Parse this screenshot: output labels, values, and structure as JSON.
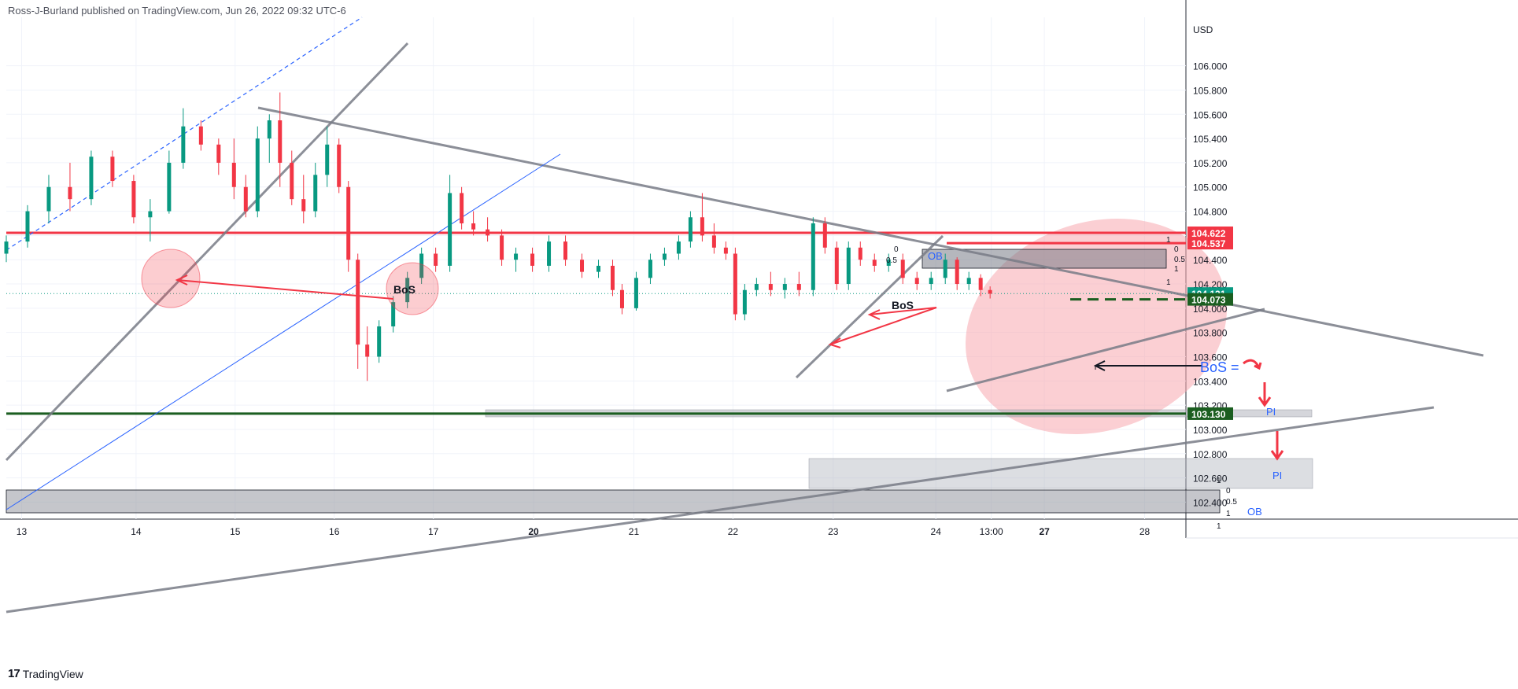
{
  "header": {
    "publisher_line": "Ross-J-Burland published on TradingView.com, Jun 26, 2022 09:32 UTC-6"
  },
  "footer": {
    "brand": "TradingView",
    "logo_icon": "tradingview-logo-icon"
  },
  "chart_data": {
    "type": "candlestick",
    "currency_label": "USD",
    "y_ticks": [
      "106.000",
      "105.800",
      "105.600",
      "105.400",
      "105.200",
      "105.000",
      "104.800",
      "104.600",
      "104.400",
      "104.200",
      "104.000",
      "103.800",
      "103.600",
      "103.400",
      "103.200",
      "103.000",
      "102.800",
      "102.600",
      "102.400"
    ],
    "x_ticks": [
      "13",
      "14",
      "15",
      "16",
      "17",
      "20",
      "21",
      "22",
      "23",
      "24",
      "13:00",
      "27",
      "28"
    ],
    "x_ticks_bold": [
      "20",
      "27"
    ],
    "ylim": [
      102.26,
      106.4
    ],
    "xlim": [
      0,
      1000
    ],
    "price_badges": [
      {
        "label": "104.622",
        "price": 104.622,
        "color": "#f23645"
      },
      {
        "label": "104.537",
        "price": 104.537,
        "color": "#f23645"
      },
      {
        "label": "104.121",
        "price": 104.121,
        "color": "#089981"
      },
      {
        "label": "104.073",
        "price": 104.073,
        "color": "#1b5e20"
      },
      {
        "label": "103.130",
        "price": 103.13,
        "color": "#1b5e20"
      }
    ],
    "colors": {
      "up": "#089981",
      "down": "#f23645",
      "trendline": "#787b86",
      "blue_line": "#2962ff",
      "zone": "#b2b5be",
      "red_zone": "#f23645",
      "ellipse": "#f7a8ae"
    },
    "candles_approx": [
      {
        "t": 0,
        "o": 104.45,
        "h": 104.6,
        "l": 104.38,
        "c": 104.55
      },
      {
        "t": 18,
        "o": 104.55,
        "h": 104.85,
        "l": 104.5,
        "c": 104.8
      },
      {
        "t": 36,
        "o": 104.8,
        "h": 105.1,
        "l": 104.7,
        "c": 105.0
      },
      {
        "t": 54,
        "o": 105.0,
        "h": 105.2,
        "l": 104.8,
        "c": 104.9
      },
      {
        "t": 72,
        "o": 104.9,
        "h": 105.3,
        "l": 104.85,
        "c": 105.25
      },
      {
        "t": 90,
        "o": 105.25,
        "h": 105.3,
        "l": 105.0,
        "c": 105.05
      },
      {
        "t": 108,
        "o": 105.05,
        "h": 105.1,
        "l": 104.7,
        "c": 104.75
      },
      {
        "t": 122,
        "o": 104.75,
        "h": 104.9,
        "l": 104.55,
        "c": 104.8
      },
      {
        "t": 138,
        "o": 104.8,
        "h": 105.3,
        "l": 104.78,
        "c": 105.2
      },
      {
        "t": 150,
        "o": 105.2,
        "h": 105.65,
        "l": 105.15,
        "c": 105.5
      },
      {
        "t": 165,
        "o": 105.5,
        "h": 105.55,
        "l": 105.3,
        "c": 105.35
      },
      {
        "t": 180,
        "o": 105.35,
        "h": 105.4,
        "l": 105.1,
        "c": 105.2
      },
      {
        "t": 193,
        "o": 105.2,
        "h": 105.4,
        "l": 104.9,
        "c": 105.0
      },
      {
        "t": 203,
        "o": 105.0,
        "h": 105.1,
        "l": 104.75,
        "c": 104.8
      },
      {
        "t": 213,
        "o": 104.8,
        "h": 105.5,
        "l": 104.75,
        "c": 105.4
      },
      {
        "t": 223,
        "o": 105.4,
        "h": 105.6,
        "l": 105.2,
        "c": 105.55
      },
      {
        "t": 232,
        "o": 105.55,
        "h": 105.78,
        "l": 105.0,
        "c": 105.2
      },
      {
        "t": 242,
        "o": 105.2,
        "h": 105.3,
        "l": 104.85,
        "c": 104.9
      },
      {
        "t": 252,
        "o": 104.9,
        "h": 105.1,
        "l": 104.7,
        "c": 104.8
      },
      {
        "t": 262,
        "o": 104.8,
        "h": 105.2,
        "l": 104.75,
        "c": 105.1
      },
      {
        "t": 272,
        "o": 105.1,
        "h": 105.5,
        "l": 105.0,
        "c": 105.35
      },
      {
        "t": 282,
        "o": 105.35,
        "h": 105.4,
        "l": 104.95,
        "c": 105.0
      },
      {
        "t": 290,
        "o": 105.0,
        "h": 105.05,
        "l": 104.3,
        "c": 104.4
      },
      {
        "t": 298,
        "o": 104.4,
        "h": 104.45,
        "l": 103.5,
        "c": 103.7
      },
      {
        "t": 306,
        "o": 103.7,
        "h": 103.85,
        "l": 103.4,
        "c": 103.6
      },
      {
        "t": 316,
        "o": 103.6,
        "h": 103.9,
        "l": 103.55,
        "c": 103.85
      },
      {
        "t": 328,
        "o": 103.85,
        "h": 104.1,
        "l": 103.8,
        "c": 104.05
      },
      {
        "t": 340,
        "o": 104.05,
        "h": 104.3,
        "l": 104.0,
        "c": 104.25
      },
      {
        "t": 352,
        "o": 104.25,
        "h": 104.5,
        "l": 104.2,
        "c": 104.45
      },
      {
        "t": 364,
        "o": 104.45,
        "h": 104.5,
        "l": 104.3,
        "c": 104.35
      },
      {
        "t": 376,
        "o": 104.35,
        "h": 105.1,
        "l": 104.3,
        "c": 104.95
      },
      {
        "t": 386,
        "o": 104.95,
        "h": 105.0,
        "l": 104.65,
        "c": 104.7
      },
      {
        "t": 396,
        "o": 104.7,
        "h": 104.8,
        "l": 104.6,
        "c": 104.65
      },
      {
        "t": 408,
        "o": 104.65,
        "h": 104.75,
        "l": 104.55,
        "c": 104.6
      },
      {
        "t": 420,
        "o": 104.6,
        "h": 104.65,
        "l": 104.35,
        "c": 104.4
      },
      {
        "t": 432,
        "o": 104.4,
        "h": 104.5,
        "l": 104.3,
        "c": 104.45
      },
      {
        "t": 446,
        "o": 104.45,
        "h": 104.5,
        "l": 104.3,
        "c": 104.35
      },
      {
        "t": 460,
        "o": 104.35,
        "h": 104.6,
        "l": 104.3,
        "c": 104.55
      },
      {
        "t": 474,
        "o": 104.55,
        "h": 104.6,
        "l": 104.35,
        "c": 104.4
      },
      {
        "t": 488,
        "o": 104.4,
        "h": 104.45,
        "l": 104.25,
        "c": 104.3
      },
      {
        "t": 502,
        "o": 104.3,
        "h": 104.4,
        "l": 104.25,
        "c": 104.35
      },
      {
        "t": 514,
        "o": 104.35,
        "h": 104.4,
        "l": 104.1,
        "c": 104.15
      },
      {
        "t": 522,
        "o": 104.15,
        "h": 104.2,
        "l": 103.95,
        "c": 104.0
      },
      {
        "t": 534,
        "o": 104.0,
        "h": 104.3,
        "l": 103.98,
        "c": 104.25
      },
      {
        "t": 546,
        "o": 104.25,
        "h": 104.45,
        "l": 104.2,
        "c": 104.4
      },
      {
        "t": 558,
        "o": 104.4,
        "h": 104.5,
        "l": 104.35,
        "c": 104.45
      },
      {
        "t": 570,
        "o": 104.45,
        "h": 104.6,
        "l": 104.4,
        "c": 104.55
      },
      {
        "t": 580,
        "o": 104.55,
        "h": 104.8,
        "l": 104.5,
        "c": 104.75
      },
      {
        "t": 590,
        "o": 104.75,
        "h": 104.95,
        "l": 104.55,
        "c": 104.6
      },
      {
        "t": 600,
        "o": 104.6,
        "h": 104.7,
        "l": 104.45,
        "c": 104.5
      },
      {
        "t": 610,
        "o": 104.5,
        "h": 104.55,
        "l": 104.4,
        "c": 104.45
      },
      {
        "t": 618,
        "o": 104.45,
        "h": 104.5,
        "l": 103.9,
        "c": 103.95
      },
      {
        "t": 626,
        "o": 103.95,
        "h": 104.2,
        "l": 103.9,
        "c": 104.15
      },
      {
        "t": 636,
        "o": 104.15,
        "h": 104.25,
        "l": 104.1,
        "c": 104.2
      },
      {
        "t": 648,
        "o": 104.2,
        "h": 104.3,
        "l": 104.1,
        "c": 104.15
      },
      {
        "t": 660,
        "o": 104.15,
        "h": 104.25,
        "l": 104.08,
        "c": 104.2
      },
      {
        "t": 672,
        "o": 104.2,
        "h": 104.3,
        "l": 104.1,
        "c": 104.15
      },
      {
        "t": 684,
        "o": 104.15,
        "h": 104.75,
        "l": 104.1,
        "c": 104.7
      },
      {
        "t": 694,
        "o": 104.7,
        "h": 104.75,
        "l": 104.45,
        "c": 104.5
      },
      {
        "t": 704,
        "o": 104.5,
        "h": 104.55,
        "l": 104.15,
        "c": 104.2
      },
      {
        "t": 714,
        "o": 104.2,
        "h": 104.55,
        "l": 104.15,
        "c": 104.5
      },
      {
        "t": 724,
        "o": 104.5,
        "h": 104.55,
        "l": 104.35,
        "c": 104.4
      },
      {
        "t": 736,
        "o": 104.4,
        "h": 104.45,
        "l": 104.3,
        "c": 104.35
      },
      {
        "t": 748,
        "o": 104.35,
        "h": 104.45,
        "l": 104.3,
        "c": 104.4
      },
      {
        "t": 760,
        "o": 104.4,
        "h": 104.45,
        "l": 104.2,
        "c": 104.25
      },
      {
        "t": 772,
        "o": 104.25,
        "h": 104.3,
        "l": 104.15,
        "c": 104.2
      },
      {
        "t": 784,
        "o": 104.2,
        "h": 104.3,
        "l": 104.15,
        "c": 104.25
      },
      {
        "t": 796,
        "o": 104.25,
        "h": 104.45,
        "l": 104.2,
        "c": 104.4
      },
      {
        "t": 806,
        "o": 104.4,
        "h": 104.42,
        "l": 104.15,
        "c": 104.2
      },
      {
        "t": 816,
        "o": 104.2,
        "h": 104.3,
        "l": 104.15,
        "c": 104.25
      },
      {
        "t": 826,
        "o": 104.25,
        "h": 104.28,
        "l": 104.1,
        "c": 104.15
      },
      {
        "t": 834,
        "o": 104.15,
        "h": 104.18,
        "l": 104.08,
        "c": 104.12
      }
    ]
  },
  "annotations": {
    "bos_labels": [
      "BoS",
      "BoS",
      "BoS ="
    ],
    "pi_labels": [
      "PI",
      "PI"
    ],
    "ob_labels": [
      "OB",
      "OB"
    ],
    "fib_labels_top": [
      "1",
      "0",
      "0.5",
      "1",
      "0.5",
      "0",
      "1"
    ],
    "fib_labels_bottom": [
      "1",
      "0",
      "0.5",
      "1",
      "1"
    ]
  }
}
